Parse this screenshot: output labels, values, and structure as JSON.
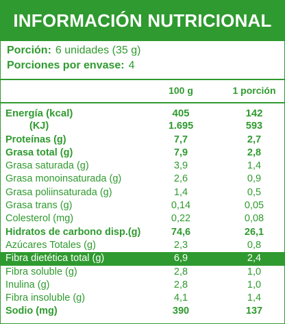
{
  "title": "INFORMACIÓN NUTRICIONAL",
  "serving": {
    "portion_label": "Porción:",
    "portion_value": "6 unidades (35 g)",
    "per_package_label": "Porciones por envase:",
    "per_package_value": "4"
  },
  "columns": {
    "per100": "100 g",
    "perPortion": "1 porción"
  },
  "rows": [
    {
      "name": "Energía (kcal)",
      "v100": "405",
      "vpor": "142"
    },
    {
      "name": "(KJ)",
      "v100": "1.695",
      "vpor": "593"
    },
    {
      "name": "Proteínas (g)",
      "v100": "7,7",
      "vpor": "2,7"
    },
    {
      "name": "Grasa total (g)",
      "v100": "7,9",
      "vpor": "2,8"
    },
    {
      "name": "Grasa saturada (g)",
      "v100": "3,9",
      "vpor": "1,4"
    },
    {
      "name": "Grasa monoinsaturada (g)",
      "v100": "2,6",
      "vpor": "0,9"
    },
    {
      "name": "Grasa poliinsaturada (g)",
      "v100": "1,4",
      "vpor": "0,5"
    },
    {
      "name": "Grasa trans (g)",
      "v100": "0,14",
      "vpor": "0,05"
    },
    {
      "name": "Colesterol (mg)",
      "v100": "0,22",
      "vpor": "0,08"
    },
    {
      "name": "Hidratos de carbono disp.(g)",
      "v100": "74,6",
      "vpor": "26,1"
    },
    {
      "name": "Azúcares Totales (g)",
      "v100": "2,3",
      "vpor": "0,8"
    },
    {
      "name": "Fibra dietética total (g)",
      "v100": "6,9",
      "vpor": "2,4"
    },
    {
      "name": "Fibra soluble (g)",
      "v100": "2,8",
      "vpor": "1,0"
    },
    {
      "name": "Inulina (g)",
      "v100": "2,8",
      "vpor": "1,0"
    },
    {
      "name": "Fibra insoluble (g)",
      "v100": "4,1",
      "vpor": "1,4"
    },
    {
      "name": "Sodio (mg)",
      "v100": "390",
      "vpor": "137"
    }
  ],
  "colors": {
    "accent": "#2f9a2f",
    "background": "#ffffff"
  }
}
